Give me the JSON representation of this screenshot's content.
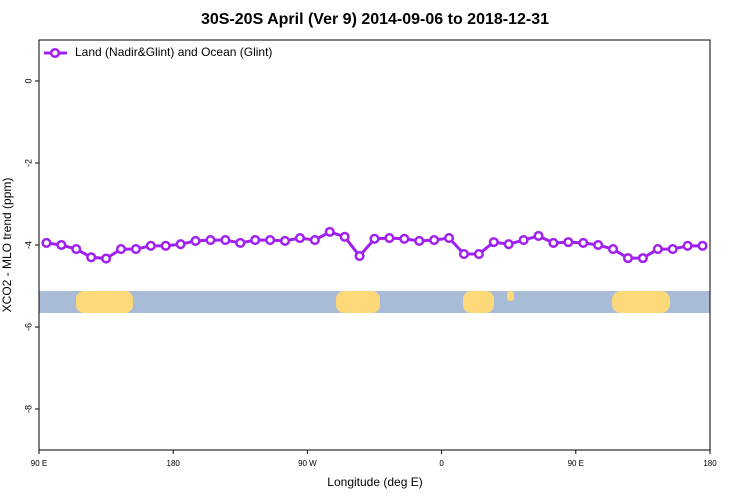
{
  "chart_data": {
    "type": "line",
    "title": "30S-20S April (Ver 9)   2014-09-06 to 2018-12-31",
    "x_label": "Longitude (deg E)",
    "y_label": "XCO2 - MLO trend (ppm)",
    "xlim": [
      90,
      540
    ],
    "ylim": [
      -9,
      1
    ],
    "xticks": [
      {
        "value": 90,
        "label": "90 E"
      },
      180,
      {
        "value": 270,
        "label": "90 W"
      },
      {
        "value": 360,
        "label": "0"
      },
      {
        "value": 450,
        "label": "90 E"
      },
      {
        "value": 540,
        "label": "180"
      }
    ],
    "yticks": [
      -8,
      -6,
      -4,
      -2,
      0
    ],
    "legend": "top-left",
    "x": [
      95,
      105,
      115,
      125,
      135,
      145,
      155,
      165,
      175,
      185,
      195,
      205,
      215,
      225,
      235,
      245,
      255,
      265,
      275,
      285,
      295,
      305,
      315,
      325,
      335,
      345,
      355,
      365,
      375,
      385,
      395,
      405,
      415,
      425,
      435,
      445,
      455,
      465,
      475,
      485,
      495,
      505,
      515,
      525,
      535
    ],
    "series": [
      {
        "name": "Land (Nadir&Glint) and Ocean (Glint)",
        "color": "#a020f0",
        "values": [
          -3.95,
          -4.0,
          -4.1,
          -4.3,
          -4.33,
          -4.1,
          -4.1,
          -4.02,
          -4.02,
          -3.98,
          -3.9,
          -3.88,
          -3.88,
          -3.95,
          -3.88,
          -3.88,
          -3.9,
          -3.83,
          -3.88,
          -3.68,
          -3.8,
          -4.27,
          -3.85,
          -3.83,
          -3.85,
          -3.9,
          -3.88,
          -3.83,
          -4.22,
          -4.22,
          -3.93,
          -3.98,
          -3.88,
          -3.78,
          -3.95,
          -3.93,
          -3.95,
          -4.0,
          -4.1,
          -4.32,
          -4.32,
          -4.1,
          -4.1,
          -4.02,
          -4.02
        ]
      }
    ]
  }
}
